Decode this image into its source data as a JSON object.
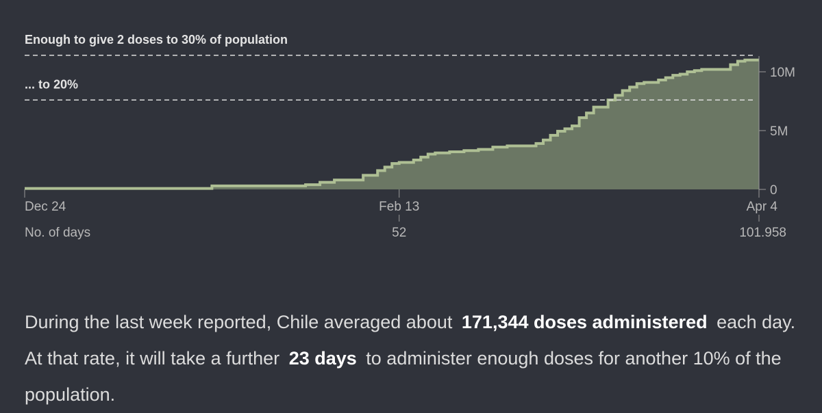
{
  "chart_data": {
    "type": "area",
    "title": "",
    "xlabel": "",
    "ylabel": "",
    "x_day_range": [
      0,
      101.958
    ],
    "ylim": [
      0,
      11000000
    ],
    "grid": false,
    "reference_lines": [
      {
        "label": "Enough to give 2 doses to 30% of population",
        "value": 11400000
      },
      {
        "label": "... to 20%",
        "value": 7600000
      }
    ],
    "y_ticks": [
      {
        "value": 0,
        "label": "0"
      },
      {
        "value": 5000000,
        "label": "5M"
      },
      {
        "value": 10000000,
        "label": "10M"
      }
    ],
    "x_ticks": [
      {
        "day": 0,
        "date_label": "Dec 24",
        "day_label": "No. of days"
      },
      {
        "day": 52,
        "date_label": "Feb 13",
        "day_label": "52"
      },
      {
        "day": 101.958,
        "date_label": "Apr 4",
        "day_label": "101.958"
      }
    ],
    "x_days": [
      0,
      26,
      39,
      41,
      43,
      45,
      47,
      49,
      50,
      51,
      52,
      54,
      55,
      56,
      57,
      58,
      59,
      61,
      63,
      65,
      67,
      69,
      71,
      72,
      73,
      74,
      75,
      76,
      77,
      78,
      79,
      80,
      81,
      82,
      83,
      84,
      85,
      86,
      87,
      88,
      89,
      90,
      91,
      92,
      93,
      94,
      95,
      96,
      98,
      99,
      100,
      101.958
    ],
    "doses": [
      80000,
      300000,
      400000,
      600000,
      800000,
      800000,
      1200000,
      1600000,
      1900000,
      2200000,
      2300000,
      2500000,
      2750000,
      3000000,
      3100000,
      3100000,
      3200000,
      3300000,
      3400000,
      3600000,
      3700000,
      3700000,
      3900000,
      4200000,
      4600000,
      4950000,
      5150000,
      5400000,
      6100000,
      6500000,
      7000000,
      7000000,
      7600000,
      8000000,
      8400000,
      8700000,
      9000000,
      9100000,
      9100000,
      9300000,
      9500000,
      9700000,
      9800000,
      10000000,
      10100000,
      10200000,
      10200000,
      10200000,
      10600000,
      10900000,
      11000000,
      11000000
    ]
  },
  "summary": {
    "part1": "During the last week reported, Chile averaged about",
    "bold1": "171,344 doses administered",
    "part2": "each day. At that rate, it will take a further",
    "bold2": "23 days",
    "part3": "to administer enough doses for another 10% of the population."
  },
  "colors": {
    "background": "#30333b",
    "area_fill": "#6b7764",
    "area_line": "#aebf94",
    "reference_line": "#dddddd"
  }
}
